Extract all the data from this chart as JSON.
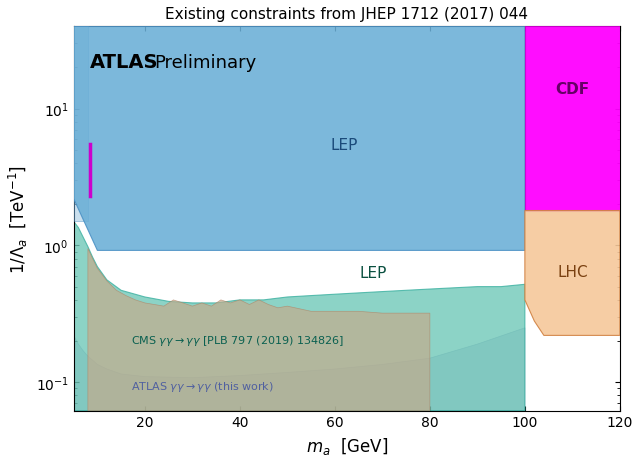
{
  "title": "Existing constraints from JHEP 1712 (2017) 044",
  "xlabel": "$m_a$  [GeV]",
  "ylabel": "$1/\\Lambda_a$  [TeV$^{-1}$]",
  "xlim": [
    5,
    120
  ],
  "ylim_log": [
    0.062,
    40
  ],
  "colors": {
    "LEP_upper": "#6aaed6",
    "LEP_upper_edge": "#4a90c4",
    "LEP_upper_light": "#a8cce4",
    "LEP_lower": "#70c8b8",
    "LEP_lower_edge": "#3ab0a0",
    "CDF": "#ff00ff",
    "CDF_edge": "#cc00cc",
    "LHC": "#f5c89a",
    "LHC_edge": "#d08040",
    "CMS_tan": "#c8a888",
    "CMS_tan_edge": "#b08060",
    "ATLAS_work": "#b0b8d8",
    "ATLAS_work_edge": "#8090b8",
    "magenta_line": "#cc00cc"
  },
  "atlas_label": "ATLAS",
  "preliminary_label": "Preliminary",
  "LEP_upper_label": "LEP",
  "LEP_lower_label": "LEP",
  "CDF_label": "CDF",
  "LHC_label": "LHC",
  "CMS_label": "CMS $\\gamma\\gamma \\rightarrow \\gamma\\gamma$ [PLB 797 (2019) 134826]",
  "ATLAS_work_label": "ATLAS $\\gamma\\gamma \\rightarrow \\gamma\\gamma$ (this work)"
}
